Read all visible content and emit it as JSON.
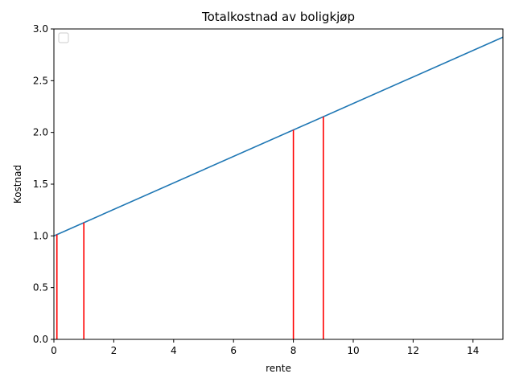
{
  "chart_data": {
    "type": "line",
    "title": "Totalkostnad av boligkjøp",
    "xlabel": "rente",
    "ylabel": "Kostnad",
    "xlim": [
      0,
      15
    ],
    "ylim": [
      0,
      3.0
    ],
    "xticks": [
      0,
      2,
      4,
      6,
      8,
      10,
      12,
      14
    ],
    "yticks": [
      0.0,
      0.5,
      1.0,
      1.5,
      2.0,
      2.5,
      3.0
    ],
    "xtick_labels": [
      "0",
      "2",
      "4",
      "6",
      "8",
      "10",
      "12",
      "14"
    ],
    "ytick_labels": [
      "0.0",
      "0.5",
      "1.0",
      "1.5",
      "2.0",
      "2.5",
      "3.0"
    ],
    "grid": false,
    "legend": {
      "placement": "upper left",
      "entries": []
    },
    "series": [
      {
        "x": [
          0,
          15
        ],
        "values": [
          1.0,
          2.92
        ],
        "color": "#1f77b4"
      }
    ],
    "vlines": [
      {
        "x": 0.1,
        "ymin": 0,
        "ymax": 1.013,
        "color": "#ff0000"
      },
      {
        "x": 1.0,
        "ymin": 0,
        "ymax": 1.128,
        "color": "#ff0000"
      },
      {
        "x": 8.0,
        "ymin": 0,
        "ymax": 2.024,
        "color": "#ff0000"
      },
      {
        "x": 9.0,
        "ymin": 0,
        "ymax": 2.152,
        "color": "#ff0000"
      }
    ]
  }
}
